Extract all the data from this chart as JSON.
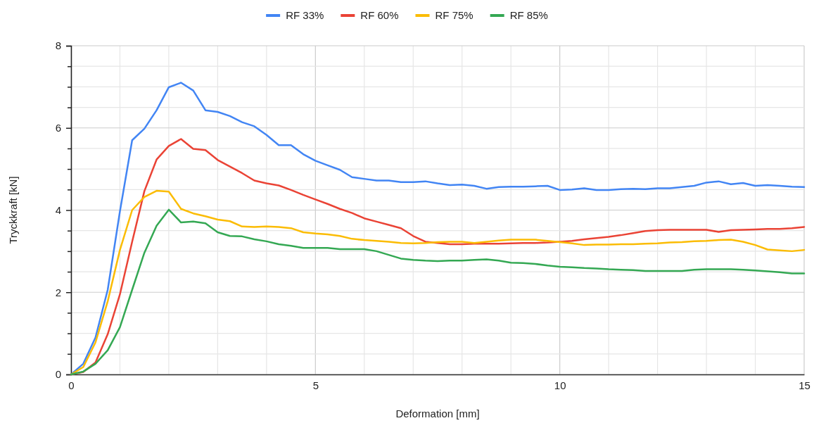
{
  "chart_data": {
    "type": "line",
    "xlabel": "Deformation [mm]",
    "ylabel": "Tryckkraft [kN]",
    "x": [
      0,
      0.25,
      0.5,
      0.75,
      1,
      1.25,
      1.5,
      1.75,
      2,
      2.25,
      2.5,
      2.75,
      3,
      3.25,
      3.5,
      3.75,
      4,
      4.25,
      4.5,
      4.75,
      5,
      5.25,
      5.5,
      5.75,
      6,
      6.25,
      6.5,
      6.75,
      7,
      7.25,
      7.5,
      7.75,
      8,
      8.25,
      8.5,
      8.75,
      9,
      9.25,
      9.5,
      9.75,
      10,
      10.25,
      10.5,
      10.75,
      11,
      11.25,
      11.5,
      11.75,
      12,
      12.25,
      12.5,
      12.75,
      13,
      13.25,
      13.5,
      13.75,
      14,
      14.25,
      14.5,
      14.75,
      15
    ],
    "series": [
      {
        "name": "RF 33%",
        "color": "#4285f4",
        "values": [
          0,
          0.26,
          0.9,
          2.06,
          3.97,
          5.7,
          5.98,
          6.43,
          6.99,
          7.1,
          6.91,
          6.43,
          6.39,
          6.29,
          6.14,
          6.04,
          5.83,
          5.58,
          5.58,
          5.36,
          5.2,
          5.09,
          4.98,
          4.8,
          4.76,
          4.72,
          4.72,
          4.68,
          4.68,
          4.7,
          4.65,
          4.61,
          4.62,
          4.59,
          4.52,
          4.56,
          4.57,
          4.57,
          4.58,
          4.59,
          4.49,
          4.5,
          4.53,
          4.49,
          4.49,
          4.51,
          4.52,
          4.51,
          4.53,
          4.53,
          4.56,
          4.59,
          4.67,
          4.7,
          4.63,
          4.66,
          4.59,
          4.61,
          4.59,
          4.57,
          4.56
        ]
      },
      {
        "name": "RF 60%",
        "color": "#ea4335",
        "values": [
          0,
          0.06,
          0.29,
          0.98,
          1.95,
          3.23,
          4.46,
          5.23,
          5.56,
          5.73,
          5.49,
          5.46,
          5.22,
          5.06,
          4.9,
          4.72,
          4.65,
          4.6,
          4.49,
          4.37,
          4.26,
          4.15,
          4.03,
          3.93,
          3.8,
          3.72,
          3.64,
          3.56,
          3.37,
          3.23,
          3.2,
          3.17,
          3.17,
          3.18,
          3.18,
          3.18,
          3.19,
          3.2,
          3.2,
          3.21,
          3.23,
          3.25,
          3.29,
          3.32,
          3.35,
          3.39,
          3.44,
          3.49,
          3.51,
          3.52,
          3.52,
          3.52,
          3.52,
          3.47,
          3.51,
          3.52,
          3.53,
          3.54,
          3.54,
          3.56,
          3.59
        ]
      },
      {
        "name": "RF 75%",
        "color": "#fbbc04",
        "values": [
          0,
          0.18,
          0.78,
          1.78,
          3.03,
          4,
          4.32,
          4.47,
          4.45,
          4.03,
          3.92,
          3.85,
          3.77,
          3.73,
          3.6,
          3.59,
          3.6,
          3.59,
          3.56,
          3.46,
          3.43,
          3.41,
          3.37,
          3.3,
          3.27,
          3.25,
          3.23,
          3.2,
          3.19,
          3.2,
          3.22,
          3.23,
          3.23,
          3.2,
          3.23,
          3.26,
          3.28,
          3.28,
          3.28,
          3.25,
          3.22,
          3.19,
          3.15,
          3.16,
          3.16,
          3.17,
          3.17,
          3.18,
          3.19,
          3.21,
          3.22,
          3.24,
          3.25,
          3.27,
          3.28,
          3.23,
          3.15,
          3.04,
          3.02,
          3,
          3.03
        ]
      },
      {
        "name": "RF 85%",
        "color": "#34a853",
        "values": [
          0,
          0.07,
          0.26,
          0.59,
          1.15,
          2.06,
          2.96,
          3.62,
          4.01,
          3.7,
          3.72,
          3.68,
          3.46,
          3.37,
          3.36,
          3.29,
          3.24,
          3.17,
          3.13,
          3.08,
          3.08,
          3.08,
          3.05,
          3.05,
          3.05,
          3,
          2.91,
          2.82,
          2.79,
          2.77,
          2.76,
          2.77,
          2.77,
          2.79,
          2.8,
          2.77,
          2.72,
          2.71,
          2.69,
          2.65,
          2.62,
          2.61,
          2.59,
          2.58,
          2.56,
          2.55,
          2.54,
          2.52,
          2.52,
          2.52,
          2.52,
          2.55,
          2.56,
          2.56,
          2.56,
          2.55,
          2.53,
          2.51,
          2.49,
          2.46,
          2.46
        ]
      }
    ],
    "xlim": [
      0,
      15
    ],
    "xticks": [
      0,
      {
        "value": 1,
        "label": null
      },
      {
        "value": 2,
        "label": null
      },
      {
        "value": 3,
        "label": null
      },
      {
        "value": 4,
        "label": null
      },
      5,
      {
        "value": 6,
        "label": null
      },
      {
        "value": 7,
        "label": null
      },
      {
        "value": 8,
        "label": null
      },
      {
        "value": 9,
        "label": null
      },
      10,
      {
        "value": 11,
        "label": null
      },
      {
        "value": 12,
        "label": null
      },
      {
        "value": 13,
        "label": null
      },
      {
        "value": 14,
        "label": null
      },
      15
    ],
    "ylim": [
      0,
      8
    ],
    "yticks": [
      0,
      {
        "value": 0.5,
        "label": null
      },
      {
        "value": 1,
        "label": null
      },
      {
        "value": 1.5,
        "label": null
      },
      2,
      {
        "value": 2.5,
        "label": null
      },
      {
        "value": 3,
        "label": null
      },
      {
        "value": 3.5,
        "label": null
      },
      4,
      {
        "value": 4.5,
        "label": null
      },
      {
        "value": 5,
        "label": null
      },
      {
        "value": 5.5,
        "label": null
      },
      6,
      {
        "value": 6.5,
        "label": null
      },
      {
        "value": 7,
        "label": null
      },
      {
        "value": 7.5,
        "label": null
      },
      8
    ],
    "grid": true,
    "legend": "top",
    "marker": "none",
    "line_style": "solid"
  }
}
